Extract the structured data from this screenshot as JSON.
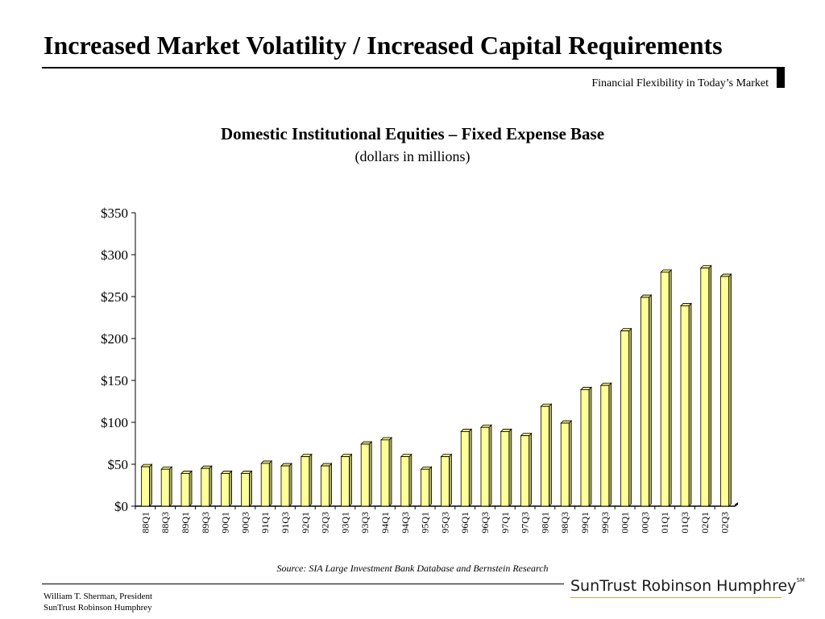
{
  "slide": {
    "title": "Increased Market Volatility / Increased Capital Requirements",
    "subtitle": "Financial Flexibility in Today’s Market"
  },
  "chart_data": {
    "type": "bar",
    "title": "Domestic Institutional Equities – Fixed Expense Base",
    "subtitle": "(dollars in millions)",
    "xlabel": "",
    "ylabel": "",
    "categories": [
      "88Q1",
      "88Q3",
      "89Q1",
      "89Q3",
      "90Q1",
      "90Q3",
      "91Q1",
      "91Q3",
      "92Q1",
      "92Q3",
      "93Q1",
      "93Q3",
      "94Q1",
      "94Q3",
      "95Q1",
      "95Q3",
      "96Q1",
      "96Q3",
      "97Q1",
      "97Q3",
      "98Q1",
      "98Q3",
      "99Q1",
      "99Q3",
      "00Q1",
      "00Q3",
      "01Q1",
      "01Q3",
      "02Q1",
      "02Q3"
    ],
    "values": [
      47,
      44,
      39,
      45,
      39,
      39,
      51,
      48,
      59,
      48,
      59,
      74,
      79,
      59,
      44,
      59,
      89,
      94,
      89,
      84,
      119,
      99,
      139,
      144,
      209,
      249,
      279,
      239,
      284,
      274
    ],
    "ylim": [
      0,
      350
    ],
    "yticks": [
      0,
      50,
      100,
      150,
      200,
      250,
      300,
      350
    ],
    "ytick_labels": [
      "$0",
      "$50",
      "$100",
      "$150",
      "$200",
      "$250",
      "$300",
      "$350"
    ],
    "grid": false,
    "legend": "none",
    "bar_color": "#ffff99",
    "bar_side_color": "#b3b34d",
    "bar_top_color": "#e6e680"
  },
  "source": "Source: SIA Large Investment Bank Database and Bernstein Research",
  "footer": {
    "line1": "William T. Sherman, President",
    "line2": "SunTrust Robinson Humphrey"
  },
  "logo": {
    "text": "SunTrust Robinson Humphrey",
    "mark": "SM",
    "underline_color": "#c8a84a"
  }
}
